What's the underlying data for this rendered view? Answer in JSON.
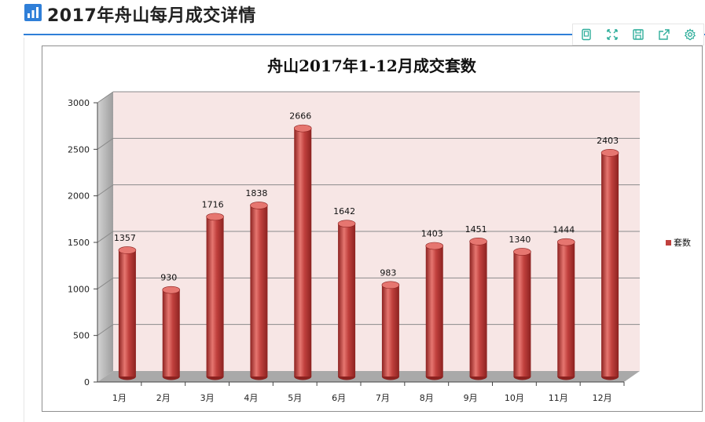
{
  "header": {
    "title": "2017年舟山每月成交详情",
    "icon": "bar-chart-icon"
  },
  "toolbar": {
    "buttons": [
      {
        "name": "data-view-icon"
      },
      {
        "name": "fullscreen-icon"
      },
      {
        "name": "save-image-icon"
      },
      {
        "name": "export-icon"
      },
      {
        "name": "settings-icon"
      }
    ]
  },
  "chart_data": {
    "type": "bar",
    "title": "舟山2017年1-12月成交套数",
    "categories": [
      "1月",
      "2月",
      "3月",
      "4月",
      "5月",
      "6月",
      "7月",
      "8月",
      "9月",
      "10月",
      "11月",
      "12月"
    ],
    "series": [
      {
        "name": "套数",
        "values": [
          1357,
          930,
          1716,
          1838,
          2666,
          1642,
          983,
          1403,
          1451,
          1340,
          1444,
          2403
        ]
      }
    ],
    "data_labels": [
      "1357",
      "930",
      "1716",
      "1838",
      "2666",
      "1642",
      "983",
      "1403",
      "1451",
      "1340",
      "1444",
      "2403"
    ],
    "ylim": [
      0,
      3000
    ],
    "yticks": [
      "0",
      "500",
      "1000",
      "1500",
      "2000",
      "2500",
      "3000"
    ],
    "legend_position": "right",
    "grid": true,
    "style": "3d-cylinder",
    "colors": {
      "bar": "#c0403d",
      "bar_dark": "#8c2220",
      "bar_light": "#e67670",
      "plot_back": "#f7e6e5",
      "side_wall": "#bdbdbd",
      "floor": "#a9a9a9",
      "grid": "#8a8a8a"
    }
  }
}
